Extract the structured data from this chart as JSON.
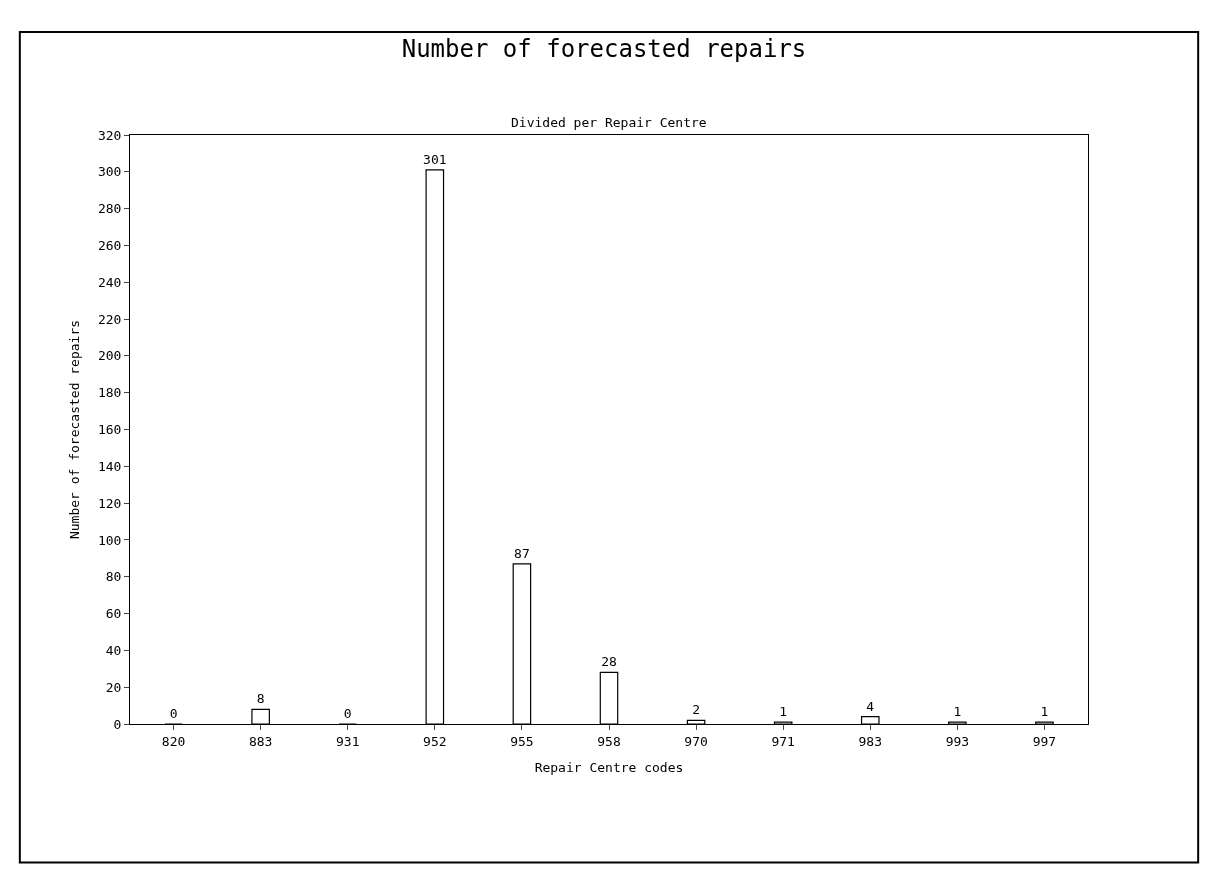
{
  "chart_data": {
    "type": "bar",
    "title": "Number of forecasted repairs",
    "subtitle": "Divided per Repair Centre",
    "xlabel": "Repair Centre codes",
    "ylabel": "Number of forecasted repairs",
    "categories": [
      "820",
      "883",
      "931",
      "952",
      "955",
      "958",
      "970",
      "971",
      "983",
      "993",
      "997"
    ],
    "values": [
      0,
      8,
      0,
      301,
      87,
      28,
      2,
      1,
      4,
      1,
      1
    ],
    "color": "#ffffff",
    "ylim": [
      0,
      320
    ],
    "yticks": [
      0,
      20,
      40,
      60,
      80,
      100,
      120,
      140,
      160,
      180,
      200,
      220,
      240,
      260,
      280,
      300,
      320
    ],
    "data_labels": true
  }
}
